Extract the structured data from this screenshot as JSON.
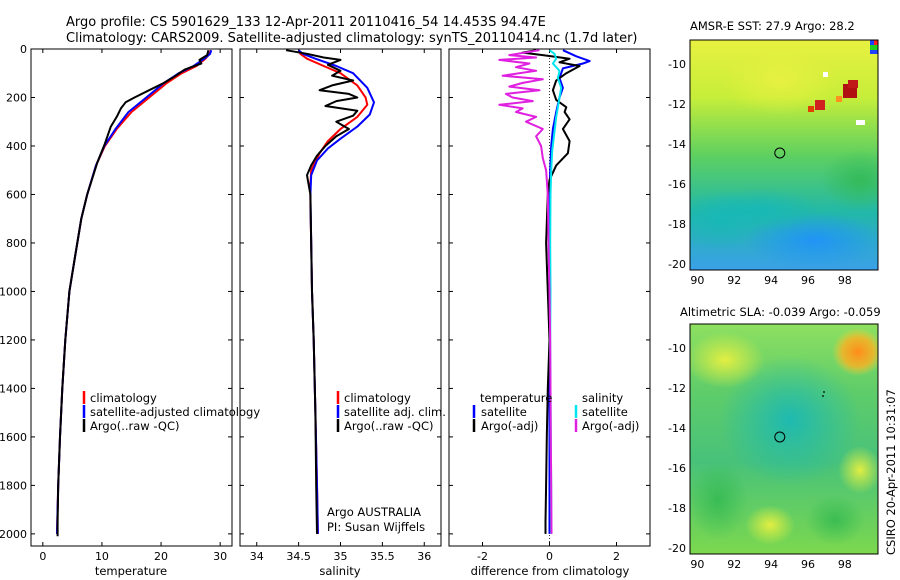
{
  "title_line1": "Argo profile: CS 5901629_133 12-Apr-2011 20110416_54 14.453S 94.47E",
  "title_line2": "Climatology: CARS2009. Satellite-adjusted climatology: synTS_20110414.nc (1.7d later)",
  "stamp": "CSIRO 20-Apr-2011 10:31:07",
  "colors": {
    "climatology": "#ff0000",
    "satellite": "#0000ff",
    "argo": "#000000",
    "cyan": "#00e5ee",
    "magenta": "#e020e0"
  },
  "chart_data": [
    {
      "type": "line",
      "name": "temperature-panel",
      "xlabel": "temperature",
      "xlim": [
        -2,
        32
      ],
      "ylim": [
        2050,
        0
      ],
      "x_ticks": [
        0,
        10,
        20,
        30
      ],
      "y_ticks": [
        0,
        200,
        400,
        600,
        800,
        1000,
        1200,
        1400,
        1600,
        1800,
        2000
      ],
      "legend": [
        "climatology",
        "satellite-adjusted climatology",
        "Argo(..raw -QC)"
      ],
      "series": [
        {
          "name": "climatology",
          "color": "climatology",
          "points": [
            [
              28.4,
              5
            ],
            [
              28.2,
              20
            ],
            [
              27.5,
              40
            ],
            [
              26,
              70
            ],
            [
              23.5,
              100
            ],
            [
              21,
              140
            ],
            [
              18,
              200
            ],
            [
              15,
              260
            ],
            [
              12.5,
              330
            ],
            [
              10.5,
              400
            ],
            [
              9,
              480
            ],
            [
              7.5,
              600
            ],
            [
              6.5,
              700
            ],
            [
              5.5,
              850
            ],
            [
              4.5,
              1000
            ],
            [
              3.8,
              1200
            ],
            [
              3.3,
              1400
            ],
            [
              2.9,
              1600
            ],
            [
              2.6,
              1800
            ],
            [
              2.4,
              2000
            ]
          ]
        },
        {
          "name": "satellite-adjusted climatology",
          "color": "satellite",
          "points": [
            [
              28.5,
              5
            ],
            [
              28.3,
              20
            ],
            [
              27.3,
              40
            ],
            [
              25.5,
              70
            ],
            [
              23,
              100
            ],
            [
              20.5,
              140
            ],
            [
              17.5,
              200
            ],
            [
              14.5,
              260
            ],
            [
              12.3,
              330
            ],
            [
              10.4,
              400
            ],
            [
              9,
              480
            ],
            [
              7.5,
              600
            ],
            [
              6.5,
              700
            ],
            [
              5.5,
              850
            ],
            [
              4.5,
              1000
            ],
            [
              3.8,
              1200
            ],
            [
              3.3,
              1400
            ],
            [
              2.9,
              1600
            ],
            [
              2.6,
              1800
            ],
            [
              2.4,
              2000
            ]
          ]
        },
        {
          "name": "Argo(..raw -QC)",
          "color": "argo",
          "points": [
            [
              28.0,
              5
            ],
            [
              27.8,
              25
            ],
            [
              26.5,
              45
            ],
            [
              26.8,
              60
            ],
            [
              24,
              85
            ],
            [
              22.5,
              110
            ],
            [
              20.5,
              140
            ],
            [
              18,
              170
            ],
            [
              15.5,
              200
            ],
            [
              14,
              220
            ],
            [
              13.2,
              245
            ],
            [
              12.5,
              280
            ],
            [
              11.5,
              320
            ],
            [
              10.5,
              390
            ],
            [
              9.2,
              470
            ],
            [
              7.5,
              600
            ],
            [
              6.5,
              700
            ],
            [
              5.5,
              850
            ],
            [
              4.5,
              1000
            ],
            [
              3.8,
              1200
            ],
            [
              3.3,
              1400
            ],
            [
              2.9,
              1600
            ],
            [
              2.6,
              1800
            ],
            [
              2.5,
              1950
            ],
            [
              2.5,
              2010
            ]
          ]
        }
      ]
    },
    {
      "type": "line",
      "name": "salinity-panel",
      "xlabel": "salinity",
      "xlim": [
        33.8,
        36.2
      ],
      "ylim": [
        2050,
        0
      ],
      "x_ticks": [
        34,
        34.5,
        35,
        35.5,
        36
      ],
      "legend": [
        "climatology",
        "satellite adj. clim.",
        "Argo(..raw -QC)"
      ],
      "annotation": [
        "Argo AUSTRALIA",
        "PI: Susan Wijffels"
      ],
      "series": [
        {
          "name": "climatology",
          "color": "climatology",
          "points": [
            [
              34.5,
              5
            ],
            [
              34.52,
              20
            ],
            [
              34.6,
              40
            ],
            [
              34.8,
              70
            ],
            [
              35.0,
              100
            ],
            [
              35.2,
              150
            ],
            [
              35.3,
              200
            ],
            [
              35.32,
              230
            ],
            [
              35.2,
              280
            ],
            [
              35.0,
              330
            ],
            [
              34.85,
              380
            ],
            [
              34.75,
              430
            ],
            [
              34.65,
              500
            ],
            [
              34.64,
              560
            ],
            [
              34.64,
              650
            ],
            [
              34.65,
              800
            ],
            [
              34.66,
              1000
            ],
            [
              34.68,
              1200
            ],
            [
              34.7,
              1500
            ],
            [
              34.72,
              1800
            ],
            [
              34.73,
              2000
            ]
          ]
        },
        {
          "name": "satellite adj. clim.",
          "color": "satellite",
          "points": [
            [
              34.5,
              5
            ],
            [
              34.55,
              20
            ],
            [
              34.7,
              40
            ],
            [
              34.95,
              70
            ],
            [
              35.15,
              100
            ],
            [
              35.32,
              160
            ],
            [
              35.4,
              220
            ],
            [
              35.35,
              270
            ],
            [
              35.2,
              320
            ],
            [
              35.0,
              370
            ],
            [
              34.85,
              410
            ],
            [
              34.72,
              460
            ],
            [
              34.65,
              520
            ],
            [
              34.64,
              600
            ],
            [
              34.65,
              800
            ],
            [
              34.66,
              1000
            ],
            [
              34.68,
              1200
            ],
            [
              34.7,
              1500
            ],
            [
              34.72,
              1800
            ],
            [
              34.73,
              2000
            ]
          ]
        },
        {
          "name": "Argo(..raw -QC)",
          "color": "argo",
          "points": [
            [
              34.35,
              5
            ],
            [
              34.6,
              20
            ],
            [
              34.8,
              35
            ],
            [
              35.0,
              45
            ],
            [
              34.85,
              65
            ],
            [
              35.0,
              90
            ],
            [
              34.9,
              110
            ],
            [
              35.15,
              130
            ],
            [
              34.9,
              150
            ],
            [
              34.75,
              170
            ],
            [
              35.1,
              185
            ],
            [
              35.2,
              200
            ],
            [
              34.95,
              215
            ],
            [
              34.82,
              235
            ],
            [
              35.2,
              255
            ],
            [
              35.15,
              275
            ],
            [
              34.95,
              300
            ],
            [
              35.1,
              330
            ],
            [
              34.95,
              360
            ],
            [
              34.82,
              400
            ],
            [
              34.72,
              440
            ],
            [
              34.65,
              480
            ],
            [
              34.6,
              520
            ],
            [
              34.61,
              540
            ],
            [
              34.64,
              600
            ],
            [
              34.65,
              800
            ],
            [
              34.66,
              1000
            ],
            [
              34.68,
              1200
            ],
            [
              34.7,
              1500
            ],
            [
              34.71,
              1800
            ],
            [
              34.72,
              2000
            ]
          ]
        }
      ]
    },
    {
      "type": "line",
      "name": "difference-panel",
      "xlabel": "difference from climatology",
      "xlim": [
        -3,
        3
      ],
      "ylim": [
        2050,
        0
      ],
      "x_ticks": [
        -2,
        0,
        2
      ],
      "legend_left_title": "temperature",
      "legend_right_title": "salinity",
      "legend": [
        "satellite",
        "Argo(-adj)",
        "satellite",
        "Argo(-adj)"
      ],
      "series": [
        {
          "name": "temperature satellite",
          "color": "satellite",
          "points": [
            [
              0.4,
              5
            ],
            [
              0.8,
              30
            ],
            [
              1.2,
              50
            ],
            [
              1.0,
              60
            ],
            [
              0.4,
              80
            ],
            [
              0.3,
              120
            ],
            [
              0.4,
              160
            ],
            [
              0.3,
              200
            ],
            [
              0.2,
              260
            ],
            [
              0.1,
              330
            ],
            [
              0.05,
              400
            ],
            [
              0.02,
              500
            ],
            [
              0.0,
              600
            ],
            [
              0.0,
              2000
            ]
          ]
        },
        {
          "name": "temperature Argo(-adj)",
          "color": "argo",
          "points": [
            [
              -0.4,
              5
            ],
            [
              -0.8,
              15
            ],
            [
              -0.2,
              25
            ],
            [
              0.6,
              40
            ],
            [
              0.3,
              55
            ],
            [
              0.9,
              70
            ],
            [
              0.5,
              100
            ],
            [
              0.2,
              130
            ],
            [
              0.1,
              170
            ],
            [
              0.2,
              210
            ],
            [
              0.5,
              240
            ],
            [
              0.45,
              260
            ],
            [
              0.6,
              290
            ],
            [
              0.4,
              330
            ],
            [
              0.6,
              380
            ],
            [
              0.55,
              430
            ],
            [
              0.2,
              480
            ],
            [
              0.0,
              540
            ],
            [
              -0.05,
              600
            ],
            [
              -0.1,
              800
            ],
            [
              -0.05,
              1000
            ],
            [
              0.0,
              1200
            ],
            [
              -0.05,
              1400
            ],
            [
              -0.08,
              1600
            ],
            [
              -0.1,
              1800
            ],
            [
              -0.12,
              1950
            ],
            [
              -0.12,
              2000
            ]
          ]
        },
        {
          "name": "salinity satellite",
          "color": "cyan",
          "points": [
            [
              0.0,
              5
            ],
            [
              0.15,
              20
            ],
            [
              0.2,
              40
            ],
            [
              0.1,
              60
            ],
            [
              0.3,
              90
            ],
            [
              0.25,
              120
            ],
            [
              0.35,
              160
            ],
            [
              0.3,
              200
            ],
            [
              0.25,
              240
            ],
            [
              0.2,
              280
            ],
            [
              0.15,
              340
            ],
            [
              0.08,
              420
            ],
            [
              0.05,
              500
            ],
            [
              0.03,
              600
            ],
            [
              0.02,
              800
            ],
            [
              0.03,
              1000
            ],
            [
              0.02,
              1200
            ],
            [
              0.03,
              1400
            ],
            [
              0.04,
              1600
            ],
            [
              0.05,
              1800
            ],
            [
              0.05,
              2000
            ]
          ]
        },
        {
          "name": "salinity Argo(-adj)",
          "color": "magenta",
          "points": [
            [
              -0.3,
              5
            ],
            [
              -1.2,
              25
            ],
            [
              -0.4,
              35
            ],
            [
              -1.5,
              45
            ],
            [
              -0.6,
              60
            ],
            [
              -1.0,
              75
            ],
            [
              -0.4,
              90
            ],
            [
              -1.4,
              110
            ],
            [
              -0.2,
              125
            ],
            [
              -0.8,
              140
            ],
            [
              -1.2,
              155
            ],
            [
              -0.3,
              170
            ],
            [
              -1.3,
              185
            ],
            [
              -1.1,
              200
            ],
            [
              -0.5,
              215
            ],
            [
              -1.5,
              230
            ],
            [
              -0.8,
              245
            ],
            [
              -1.0,
              260
            ],
            [
              -0.4,
              280
            ],
            [
              -0.7,
              300
            ],
            [
              -0.2,
              330
            ],
            [
              -0.4,
              360
            ],
            [
              -0.25,
              400
            ],
            [
              -0.2,
              450
            ],
            [
              -0.1,
              500
            ],
            [
              -0.05,
              600
            ],
            [
              -0.03,
              800
            ],
            [
              0.0,
              1000
            ],
            [
              0.02,
              1200
            ],
            [
              0.03,
              1400
            ],
            [
              0.04,
              1600
            ],
            [
              0.05,
              1800
            ],
            [
              0.06,
              2000
            ]
          ]
        }
      ]
    },
    {
      "type": "heatmap",
      "name": "sst-map",
      "title": "AMSR-E SST: 27.9  Argo: 28.2",
      "xlim": [
        89.6,
        99.8
      ],
      "ylim": [
        -20.3,
        -8.8
      ],
      "x_ticks": [
        90,
        92,
        94,
        96,
        98
      ],
      "y_ticks": [
        -10,
        -12,
        -14,
        -16,
        -18,
        -20
      ],
      "marker": [
        94.47,
        -14.45
      ]
    },
    {
      "type": "heatmap",
      "name": "sla-map",
      "title": "Altimetric SLA: -0.039  Argo: -0.059",
      "xlim": [
        89.6,
        99.8
      ],
      "ylim": [
        -20.3,
        -8.8
      ],
      "x_ticks": [
        90,
        92,
        94,
        96,
        98
      ],
      "y_ticks": [
        -10,
        -12,
        -14,
        -16,
        -18,
        -20
      ],
      "marker": [
        94.47,
        -14.45
      ]
    }
  ]
}
